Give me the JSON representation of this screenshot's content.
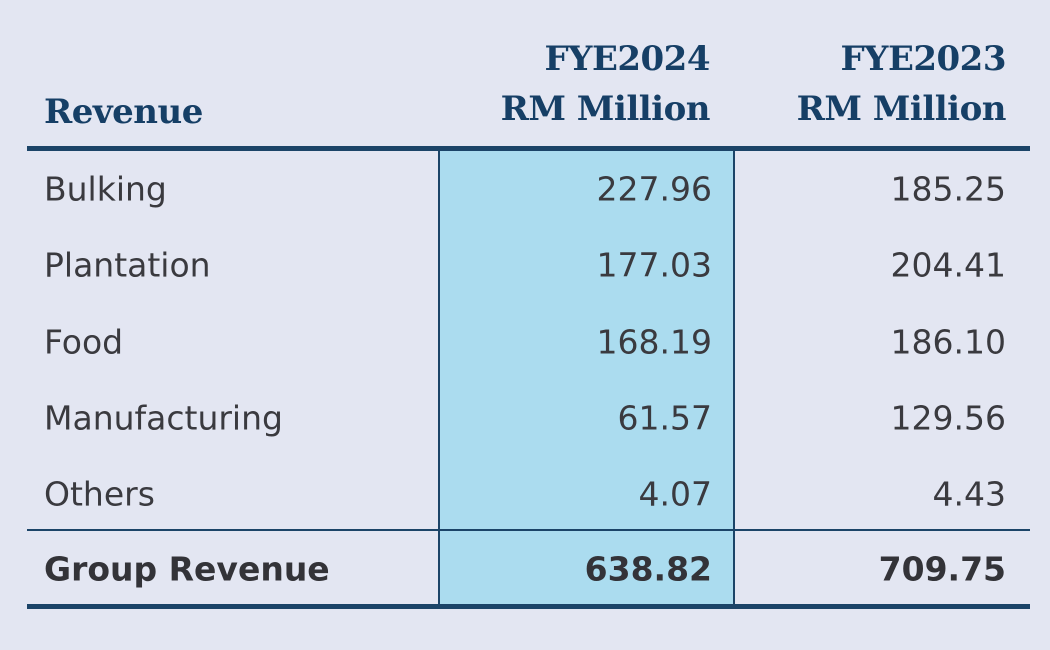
{
  "table": {
    "header": {
      "label": "Revenue",
      "columns": [
        {
          "line1": "FYE2024",
          "line2": "RM Million"
        },
        {
          "line1": "FYE2023",
          "line2": "RM Million"
        }
      ]
    },
    "rows": [
      {
        "label": "Bulking",
        "fye2024": "227.96",
        "fye2023": "185.25"
      },
      {
        "label": "Plantation",
        "fye2024": "177.03",
        "fye2023": "204.41"
      },
      {
        "label": "Food",
        "fye2024": "168.19",
        "fye2023": "186.10"
      },
      {
        "label": "Manufacturing",
        "fye2024": "61.57",
        "fye2023": "129.56"
      },
      {
        "label": "Others",
        "fye2024": "4.07",
        "fye2023": "4.43"
      }
    ],
    "total": {
      "label": "Group Revenue",
      "fye2024": "638.82",
      "fye2023": "709.75"
    }
  },
  "colors": {
    "background": "#e3e6f2",
    "header_text": "#163f66",
    "rule": "#1b4468",
    "highlight_column": "#abdcef",
    "body_text": "#3a3a3f"
  }
}
